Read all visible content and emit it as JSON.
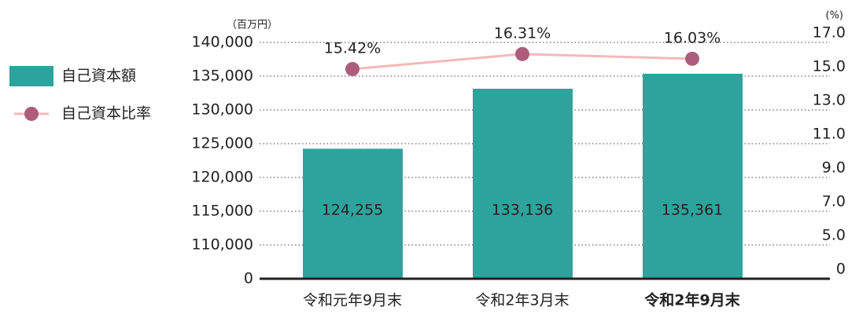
{
  "chart_data": {
    "type": "bar",
    "y_unit": "（百万円）",
    "y2_unit": "(%)",
    "categories": [
      "令和元年9月末",
      "令和2年3月末",
      "令和2年9月末"
    ],
    "series": [
      {
        "name": "自己資本額",
        "type": "bar",
        "color": "#2ea39d",
        "values": [
          124255,
          133136,
          135361
        ],
        "value_labels": [
          "124,255",
          "133,136",
          "135,361"
        ]
      },
      {
        "name": "自己資本比率",
        "type": "line",
        "axis": "y2",
        "color": "#f4b9b9",
        "marker_color": "#ad5d7b",
        "values": [
          15.42,
          16.31,
          16.03
        ],
        "value_labels": [
          "15.42%",
          "16.31%",
          "16.03%"
        ]
      }
    ],
    "ylim": [
      0,
      140000
    ],
    "yticks": [
      0,
      {
        "value": 110000,
        "label": "110,000"
      },
      {
        "value": 115000,
        "label": "115,000"
      },
      {
        "value": 120000,
        "label": "120,000"
      },
      {
        "value": 125000,
        "label": "125,000"
      },
      {
        "value": 130000,
        "label": "130,000"
      },
      {
        "value": 135000,
        "label": "135,000"
      },
      {
        "value": 140000,
        "label": "140,000"
      }
    ],
    "y2lim": [
      0,
      17
    ],
    "y2ticks": [
      0,
      {
        "value": 5,
        "label": "5.0"
      },
      {
        "value": 7,
        "label": "7.0"
      },
      {
        "value": 9,
        "label": "9.0"
      },
      {
        "value": 11,
        "label": "11.0"
      },
      {
        "value": 13,
        "label": "13.0"
      },
      {
        "value": 15,
        "label": "15.0"
      },
      {
        "value": 17,
        "label": "17.0"
      }
    ],
    "grid": true
  }
}
